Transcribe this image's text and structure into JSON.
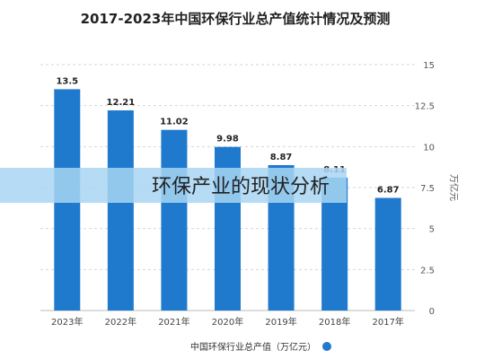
{
  "chart_data": {
    "type": "bar",
    "title": "2017-2023年中国环保行业总产值统计情况及预测",
    "categories": [
      "2023年",
      "2022年",
      "2021年",
      "2020年",
      "2019年",
      "2018年",
      "2017年"
    ],
    "series": [
      {
        "name": "中国环保行业总产值（万亿元）",
        "values": [
          13.5,
          12.21,
          11.02,
          9.98,
          8.87,
          8.11,
          6.87
        ]
      }
    ],
    "value_labels": [
      "13.5",
      "12.21",
      "11.02",
      "9.98",
      "8.87",
      "8.11",
      "6.87"
    ],
    "ylabel": "万亿元",
    "ylim": [
      0,
      15
    ],
    "yticks": [
      "15",
      "12.5",
      "10",
      "7.5",
      "5",
      "2.5",
      "0"
    ],
    "grid": true,
    "legend_position": "bottom",
    "bar_color": "#1f79cc",
    "axis_side": "right"
  },
  "overlay": {
    "banner_text": "环保产业的现状分析",
    "banner_color": "#a8d6f2"
  }
}
